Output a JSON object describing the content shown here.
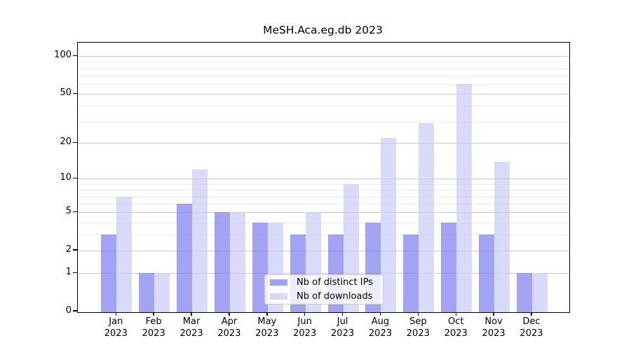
{
  "chart_data": {
    "type": "bar",
    "title": "MeSH.Aca.eg.db 2023",
    "categories": [
      {
        "month": "Jan",
        "year": "2023"
      },
      {
        "month": "Feb",
        "year": "2023"
      },
      {
        "month": "Mar",
        "year": "2023"
      },
      {
        "month": "Apr",
        "year": "2023"
      },
      {
        "month": "May",
        "year": "2023"
      },
      {
        "month": "Jun",
        "year": "2023"
      },
      {
        "month": "Jul",
        "year": "2023"
      },
      {
        "month": "Aug",
        "year": "2023"
      },
      {
        "month": "Sep",
        "year": "2023"
      },
      {
        "month": "Oct",
        "year": "2023"
      },
      {
        "month": "Nov",
        "year": "2023"
      },
      {
        "month": "Dec",
        "year": "2023"
      }
    ],
    "series": [
      {
        "name": "Nb of distinct IPs",
        "color": "rgba(128,128,240,0.72)",
        "values": [
          3,
          1,
          6,
          5,
          4,
          3,
          3,
          4,
          3,
          4,
          3,
          1
        ]
      },
      {
        "name": "Nb of downloads",
        "color": "rgba(203,203,247,0.72)",
        "values": [
          7,
          1,
          12,
          5,
          4,
          5,
          9,
          22,
          29,
          60,
          14,
          1
        ]
      }
    ],
    "y_axis": {
      "scale": "log10(1+x)",
      "ticks": [
        0,
        1,
        2,
        5,
        10,
        20,
        50,
        100
      ],
      "minor_gridlines": [
        3,
        4,
        6,
        7,
        8,
        9,
        30,
        40,
        60,
        70,
        80,
        90
      ],
      "major_gridline_color": "#c9c9c9",
      "minor_gridline_color": "#ededed",
      "ylim": [
        0,
        100
      ]
    },
    "legend": {
      "position": "lower-center"
    },
    "grid": "on"
  }
}
